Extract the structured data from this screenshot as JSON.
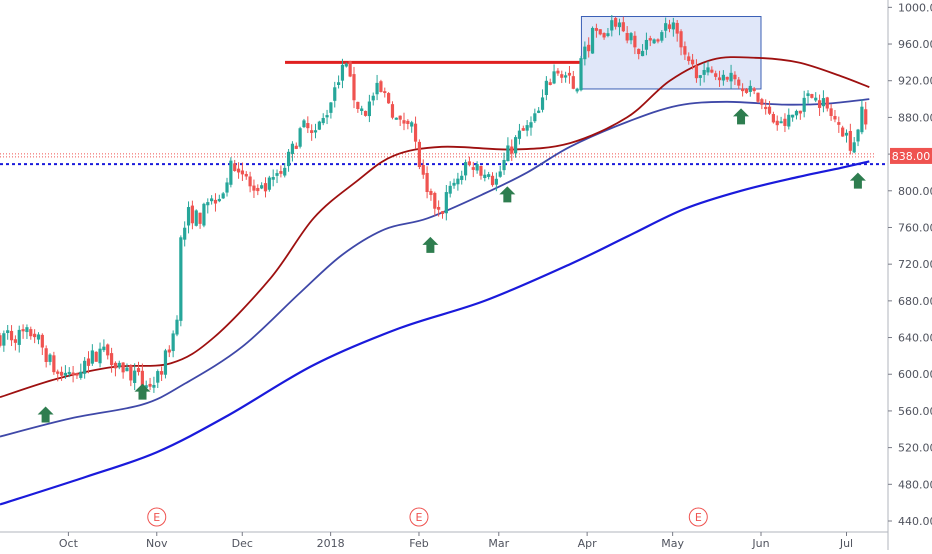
{
  "chart_data": {
    "type": "line",
    "chart_kind": "candlestick",
    "title": "",
    "xlabel": "",
    "ylabel": "",
    "ylim": [
      428,
      1008
    ],
    "grid": false,
    "x_ticks": [
      {
        "label": "Oct",
        "day": 14
      },
      {
        "label": "Nov",
        "day": 45
      },
      {
        "label": "Dec",
        "day": 75
      },
      {
        "label": "2018",
        "day": 106
      },
      {
        "label": "Feb",
        "day": 137
      },
      {
        "label": "Mar",
        "day": 165
      },
      {
        "label": "Apr",
        "day": 196
      },
      {
        "label": "May",
        "day": 226
      },
      {
        "label": "Jun",
        "day": 257
      },
      {
        "label": "Jul",
        "day": 287
      }
    ],
    "x_range": [
      -10,
      297
    ],
    "y_ticks": [
      440,
      480,
      520,
      560,
      600,
      640,
      680,
      720,
      760,
      800,
      840,
      880,
      920,
      960,
      1000
    ],
    "y_tick_labels": [
      "440.00",
      "480.00",
      "520.00",
      "560.00",
      "600.00",
      "640.00",
      "680.00",
      "720.00",
      "760.00",
      "800.00",
      "840.00",
      "880.00",
      "920.00",
      "960.00",
      "1000.00"
    ],
    "last_price": {
      "value": 838,
      "label": "838.00",
      "color": "#ef5350"
    },
    "colors": {
      "up": "#26a69a",
      "down": "#ef5350",
      "ma_slow": "#1a1adb",
      "ma_mid": "#3f48a8",
      "ma_fast": "#9e1010",
      "resistance": "#e02020",
      "support": "#1a1adb",
      "arrow": "#2e7d4f",
      "earnings": "#ef5350",
      "box_fill": "#dbe3f8",
      "box_stroke": "#3a5fb5"
    },
    "candles_anchor": [
      [
        -10,
        640
      ],
      [
        2,
        645
      ],
      [
        10,
        600
      ],
      [
        14,
        598
      ],
      [
        18,
        608
      ],
      [
        26,
        628
      ],
      [
        34,
        605
      ],
      [
        38,
        595
      ],
      [
        40,
        590
      ],
      [
        43,
        585
      ],
      [
        46,
        600
      ],
      [
        50,
        635
      ],
      [
        52,
        660
      ],
      [
        53,
        740
      ],
      [
        56,
        775
      ],
      [
        60,
        770
      ],
      [
        64,
        790
      ],
      [
        68,
        800
      ],
      [
        72,
        832
      ],
      [
        76,
        815
      ],
      [
        80,
        792
      ],
      [
        84,
        805
      ],
      [
        88,
        815
      ],
      [
        92,
        840
      ],
      [
        96,
        870
      ],
      [
        100,
        862
      ],
      [
        104,
        880
      ],
      [
        108,
        920
      ],
      [
        111,
        935
      ],
      [
        115,
        895
      ],
      [
        118,
        885
      ],
      [
        122,
        910
      ],
      [
        126,
        900
      ],
      [
        130,
        870
      ],
      [
        134,
        885
      ],
      [
        136,
        845
      ],
      [
        140,
        790
      ],
      [
        144,
        780
      ],
      [
        148,
        800
      ],
      [
        152,
        820
      ],
      [
        156,
        830
      ],
      [
        160,
        820
      ],
      [
        164,
        810
      ],
      [
        168,
        840
      ],
      [
        172,
        860
      ],
      [
        176,
        870
      ],
      [
        180,
        890
      ],
      [
        182,
        920
      ],
      [
        186,
        935
      ],
      [
        190,
        920
      ],
      [
        192,
        900
      ],
      [
        194,
        945
      ],
      [
        198,
        970
      ],
      [
        202,
        965
      ],
      [
        206,
        985
      ],
      [
        210,
        970
      ],
      [
        214,
        950
      ],
      [
        218,
        960
      ],
      [
        222,
        975
      ],
      [
        226,
        985
      ],
      [
        228,
        960
      ],
      [
        231,
        935
      ],
      [
        236,
        930
      ],
      [
        240,
        925
      ],
      [
        244,
        935
      ],
      [
        248,
        920
      ],
      [
        252,
        915
      ],
      [
        256,
        900
      ],
      [
        260,
        880
      ],
      [
        264,
        870
      ],
      [
        268,
        880
      ],
      [
        272,
        900
      ],
      [
        276,
        905
      ],
      [
        280,
        890
      ],
      [
        284,
        870
      ],
      [
        287,
        860
      ],
      [
        289,
        848
      ],
      [
        291,
        870
      ],
      [
        293,
        890
      ],
      [
        295,
        838
      ]
    ],
    "series": [
      {
        "name": "",
        "color": "#1a1adb",
        "points": [
          [
            -10,
            458
          ],
          [
            20,
            488
          ],
          [
            45,
            515
          ],
          [
            70,
            555
          ],
          [
            100,
            610
          ],
          [
            130,
            650
          ],
          [
            160,
            680
          ],
          [
            190,
            720
          ],
          [
            210,
            750
          ],
          [
            230,
            780
          ],
          [
            250,
            800
          ],
          [
            270,
            815
          ],
          [
            285,
            825
          ],
          [
            295,
            832
          ]
        ]
      },
      {
        "name": "",
        "color": "#3f48a8",
        "points": [
          [
            -10,
            532
          ],
          [
            15,
            552
          ],
          [
            40,
            567
          ],
          [
            55,
            590
          ],
          [
            75,
            630
          ],
          [
            95,
            688
          ],
          [
            110,
            730
          ],
          [
            125,
            758
          ],
          [
            140,
            770
          ],
          [
            160,
            797
          ],
          [
            175,
            820
          ],
          [
            190,
            848
          ],
          [
            210,
            875
          ],
          [
            228,
            893
          ],
          [
            245,
            897
          ],
          [
            265,
            894
          ],
          [
            280,
            895
          ],
          [
            295,
            900
          ]
        ]
      },
      {
        "name": "",
        "color": "#9e1010",
        "points": [
          [
            -10,
            575
          ],
          [
            10,
            595
          ],
          [
            30,
            608
          ],
          [
            50,
            612
          ],
          [
            65,
            640
          ],
          [
            85,
            705
          ],
          [
            100,
            770
          ],
          [
            115,
            810
          ],
          [
            128,
            838
          ],
          [
            145,
            848
          ],
          [
            170,
            845
          ],
          [
            190,
            852
          ],
          [
            210,
            880
          ],
          [
            225,
            920
          ],
          [
            240,
            943
          ],
          [
            255,
            945
          ],
          [
            270,
            940
          ],
          [
            285,
            925
          ],
          [
            295,
            913
          ]
        ]
      }
    ],
    "annotations": {
      "resistance_line": {
        "y": 940,
        "x_from": 90,
        "x_to": 194
      },
      "support_line": {
        "y": 829
      },
      "reference_line": {
        "y": 838
      },
      "box": {
        "x_from": 194,
        "x_to": 257,
        "y_from": 911,
        "y_to": 990
      },
      "up_arrows": [
        {
          "day": 6,
          "y": 555,
          "label": ""
        },
        {
          "day": 40,
          "y": 580,
          "label": ""
        },
        {
          "day": 141,
          "y": 740,
          "label": ""
        },
        {
          "day": 168,
          "y": 795,
          "label": ""
        },
        {
          "day": 250,
          "y": 880,
          "label": ""
        },
        {
          "day": 291,
          "y": 810,
          "label": ""
        }
      ],
      "earnings_markers": [
        {
          "day": 45,
          "label": "E"
        },
        {
          "day": 137,
          "label": "E"
        },
        {
          "day": 235,
          "label": "E"
        }
      ]
    }
  }
}
